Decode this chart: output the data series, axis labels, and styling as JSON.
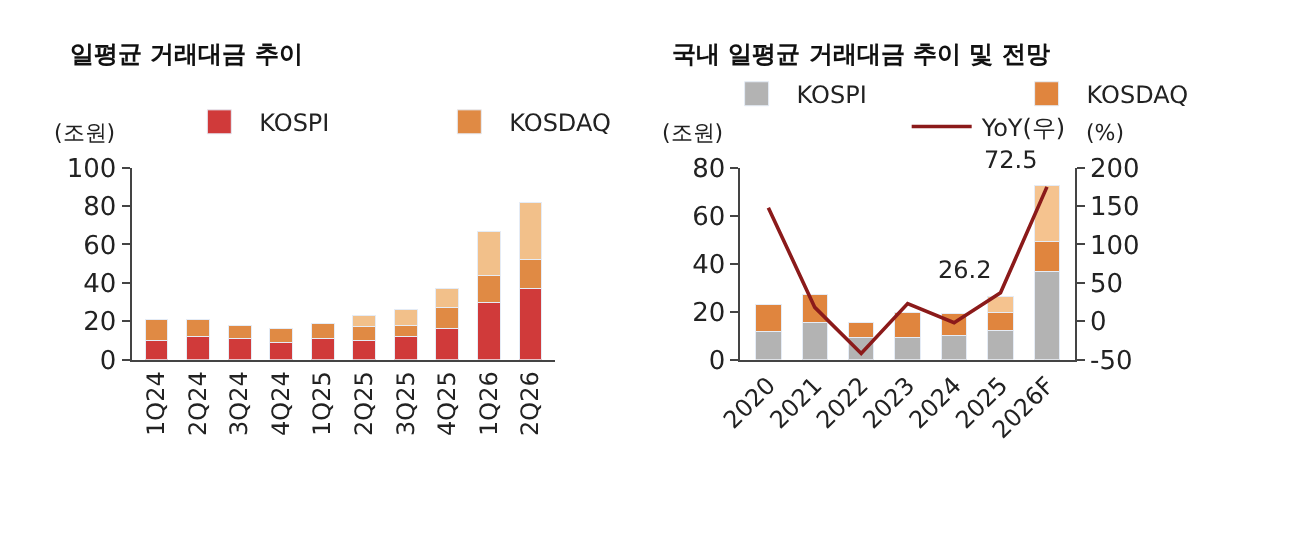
{
  "chart_data": [
    {
      "type": "bar",
      "title": "일평균 거래대금 추이",
      "ylabel": "(조원)",
      "stacked": true,
      "legend": "top",
      "categories": [
        "1Q24",
        "2Q24",
        "3Q24",
        "4Q24",
        "1Q25",
        "2Q25",
        "3Q25",
        "4Q25",
        "1Q26",
        "2Q26"
      ],
      "ylim": [
        0,
        100
      ],
      "yticks": [
        0,
        20,
        40,
        60,
        80,
        100
      ],
      "series": [
        {
          "name": "KOSPI",
          "color": "#d03a3a",
          "values": [
            10,
            12,
            11,
            9,
            11,
            10,
            12,
            16,
            30,
            37
          ]
        },
        {
          "name": "KOSDAQ",
          "color": "#e08a44",
          "values": [
            11,
            9,
            7,
            7,
            8,
            7,
            6,
            11,
            14,
            15
          ]
        },
        {
          "color": "#f2c08a",
          "values": [
            null,
            null,
            null,
            null,
            null,
            6,
            8,
            10,
            23,
            30
          ]
        }
      ]
    },
    {
      "type": "bar",
      "title": "국내 일평균 거래대금 추이 및 전망",
      "ylabel": "(조원)",
      "y2label": "(%)",
      "stacked": true,
      "legend": "top",
      "categories": [
        "2020",
        "2021",
        "2022",
        "2023",
        "2024",
        "2025",
        "2026F"
      ],
      "ylim": [
        0,
        80
      ],
      "yticks": [
        0,
        20,
        40,
        60,
        80
      ],
      "y2lim": [
        -50,
        200
      ],
      "y2ticks": [
        -50,
        0,
        50,
        100,
        150,
        200
      ],
      "totals": [
        null,
        null,
        null,
        null,
        null,
        "26.2",
        "72.5"
      ],
      "series": [
        {
          "name": "KOSPI",
          "color": "#b3b3b3",
          "values": [
            11.8,
            15.5,
            9.4,
            9.4,
            10.1,
            12.3,
            36.9
          ]
        },
        {
          "name": "KOSDAQ",
          "color": "#e0853e",
          "values": [
            11.1,
            11.6,
            6.1,
            10.3,
            9.1,
            7.4,
            12.4
          ]
        },
        {
          "color": "#f5c38f",
          "values": [
            null,
            null,
            null,
            null,
            null,
            6.5,
            23.2
          ]
        },
        {
          "name": "YoY(우)",
          "type": "line",
          "axis": "y2",
          "marker": "none",
          "color": "#8b1a1a",
          "values": [
            148,
            18,
            -42,
            23,
            -2,
            37,
            175
          ]
        }
      ]
    }
  ]
}
